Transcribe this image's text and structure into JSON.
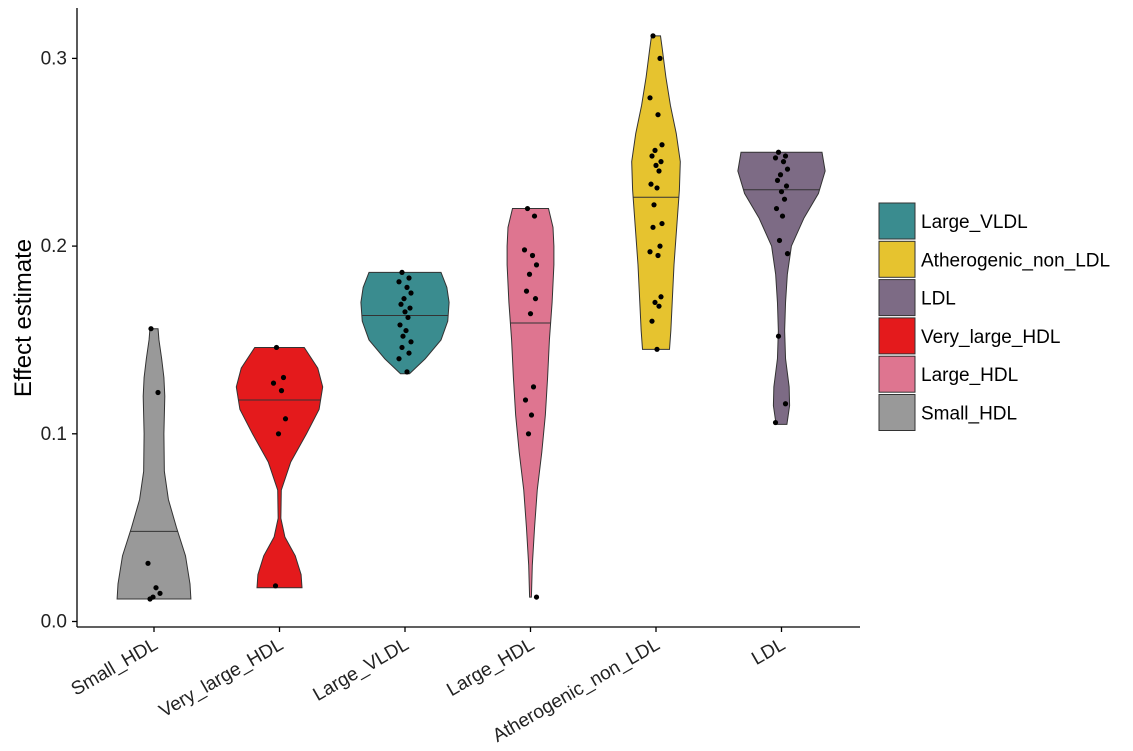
{
  "chart_data": {
    "type": "violin",
    "title": "",
    "xlabel": "",
    "ylabel": "Effect estimate",
    "ylim": [
      0,
      0.32
    ],
    "yticks": [
      "0.0",
      "0.1",
      "0.2",
      "0.3"
    ],
    "grid": false,
    "legend_position": "right",
    "categories": [
      "Small_HDL",
      "Very_large_HDL",
      "Large_VLDL",
      "Large_HDL",
      "Atherogenic_non_LDL",
      "LDL"
    ],
    "series": [
      {
        "category": "Small_HDL",
        "color": "#999999",
        "median": 0.048,
        "min": 0.012,
        "max": 0.156,
        "points": [
          0.156,
          0.122,
          0.031,
          0.018,
          0.015,
          0.013,
          0.012
        ],
        "density": [
          [
            0.012,
            0.82
          ],
          [
            0.02,
            0.8
          ],
          [
            0.035,
            0.7
          ],
          [
            0.05,
            0.5
          ],
          [
            0.065,
            0.32
          ],
          [
            0.08,
            0.23
          ],
          [
            0.1,
            0.22
          ],
          [
            0.12,
            0.24
          ],
          [
            0.13,
            0.22
          ],
          [
            0.14,
            0.17
          ],
          [
            0.15,
            0.11
          ],
          [
            0.156,
            0.09
          ]
        ]
      },
      {
        "category": "Very_large_HDL",
        "color": "#E41A1C",
        "median": 0.118,
        "min": 0.018,
        "max": 0.146,
        "points": [
          0.146,
          0.13,
          0.127,
          0.123,
          0.108,
          0.1,
          0.019
        ],
        "density": [
          [
            0.018,
            0.5
          ],
          [
            0.025,
            0.48
          ],
          [
            0.035,
            0.35
          ],
          [
            0.045,
            0.12
          ],
          [
            0.055,
            0.03
          ],
          [
            0.07,
            0.04
          ],
          [
            0.085,
            0.25
          ],
          [
            0.1,
            0.6
          ],
          [
            0.113,
            0.88
          ],
          [
            0.125,
            0.96
          ],
          [
            0.135,
            0.85
          ],
          [
            0.146,
            0.55
          ]
        ]
      },
      {
        "category": "Large_VLDL",
        "color": "#3A8C8F",
        "median": 0.163,
        "min": 0.132,
        "max": 0.186,
        "points": [
          0.186,
          0.183,
          0.181,
          0.178,
          0.175,
          0.172,
          0.169,
          0.167,
          0.165,
          0.162,
          0.158,
          0.155,
          0.152,
          0.149,
          0.146,
          0.143,
          0.14,
          0.133
        ],
        "density": [
          [
            0.132,
            0.1
          ],
          [
            0.14,
            0.45
          ],
          [
            0.15,
            0.8
          ],
          [
            0.16,
            0.95
          ],
          [
            0.17,
            0.98
          ],
          [
            0.178,
            0.93
          ],
          [
            0.186,
            0.8
          ]
        ]
      },
      {
        "category": "Large_HDL",
        "color": "#DE7590",
        "median": 0.159,
        "min": 0.013,
        "max": 0.22,
        "points": [
          0.22,
          0.216,
          0.198,
          0.195,
          0.19,
          0.185,
          0.176,
          0.172,
          0.164,
          0.125,
          0.118,
          0.11,
          0.1,
          0.013
        ],
        "density": [
          [
            0.013,
            0.02
          ],
          [
            0.03,
            0.04
          ],
          [
            0.05,
            0.09
          ],
          [
            0.07,
            0.15
          ],
          [
            0.09,
            0.25
          ],
          [
            0.11,
            0.33
          ],
          [
            0.13,
            0.38
          ],
          [
            0.15,
            0.42
          ],
          [
            0.17,
            0.48
          ],
          [
            0.19,
            0.52
          ],
          [
            0.2,
            0.52
          ],
          [
            0.21,
            0.5
          ],
          [
            0.22,
            0.4
          ]
        ]
      },
      {
        "category": "Atherogenic_non_LDL",
        "color": "#E6C32F",
        "median": 0.226,
        "min": 0.145,
        "max": 0.312,
        "points": [
          0.312,
          0.3,
          0.279,
          0.27,
          0.254,
          0.251,
          0.248,
          0.245,
          0.243,
          0.24,
          0.233,
          0.231,
          0.222,
          0.212,
          0.21,
          0.2,
          0.197,
          0.195,
          0.173,
          0.17,
          0.168,
          0.16,
          0.145
        ],
        "density": [
          [
            0.145,
            0.3
          ],
          [
            0.155,
            0.33
          ],
          [
            0.17,
            0.36
          ],
          [
            0.19,
            0.4
          ],
          [
            0.21,
            0.46
          ],
          [
            0.23,
            0.52
          ],
          [
            0.245,
            0.54
          ],
          [
            0.26,
            0.45
          ],
          [
            0.275,
            0.32
          ],
          [
            0.29,
            0.22
          ],
          [
            0.305,
            0.14
          ],
          [
            0.312,
            0.1
          ]
        ]
      },
      {
        "category": "LDL",
        "color": "#7D6B85",
        "median": 0.23,
        "min": 0.105,
        "max": 0.25,
        "points": [
          0.25,
          0.248,
          0.247,
          0.245,
          0.241,
          0.238,
          0.235,
          0.232,
          0.229,
          0.225,
          0.22,
          0.216,
          0.203,
          0.196,
          0.152,
          0.116,
          0.106
        ],
        "density": [
          [
            0.105,
            0.12
          ],
          [
            0.115,
            0.18
          ],
          [
            0.125,
            0.17
          ],
          [
            0.14,
            0.09
          ],
          [
            0.155,
            0.07
          ],
          [
            0.17,
            0.09
          ],
          [
            0.185,
            0.13
          ],
          [
            0.2,
            0.22
          ],
          [
            0.215,
            0.5
          ],
          [
            0.228,
            0.82
          ],
          [
            0.24,
            0.97
          ],
          [
            0.25,
            0.9
          ]
        ]
      }
    ],
    "legend": [
      {
        "label": "Large_VLDL",
        "color": "#3A8C8F"
      },
      {
        "label": "Atherogenic_non_LDL",
        "color": "#E6C32F"
      },
      {
        "label": "LDL",
        "color": "#7D6B85"
      },
      {
        "label": "Very_large_HDL",
        "color": "#E41A1C"
      },
      {
        "label": "Large_HDL",
        "color": "#DE7590"
      },
      {
        "label": "Small_HDL",
        "color": "#999999"
      }
    ]
  }
}
